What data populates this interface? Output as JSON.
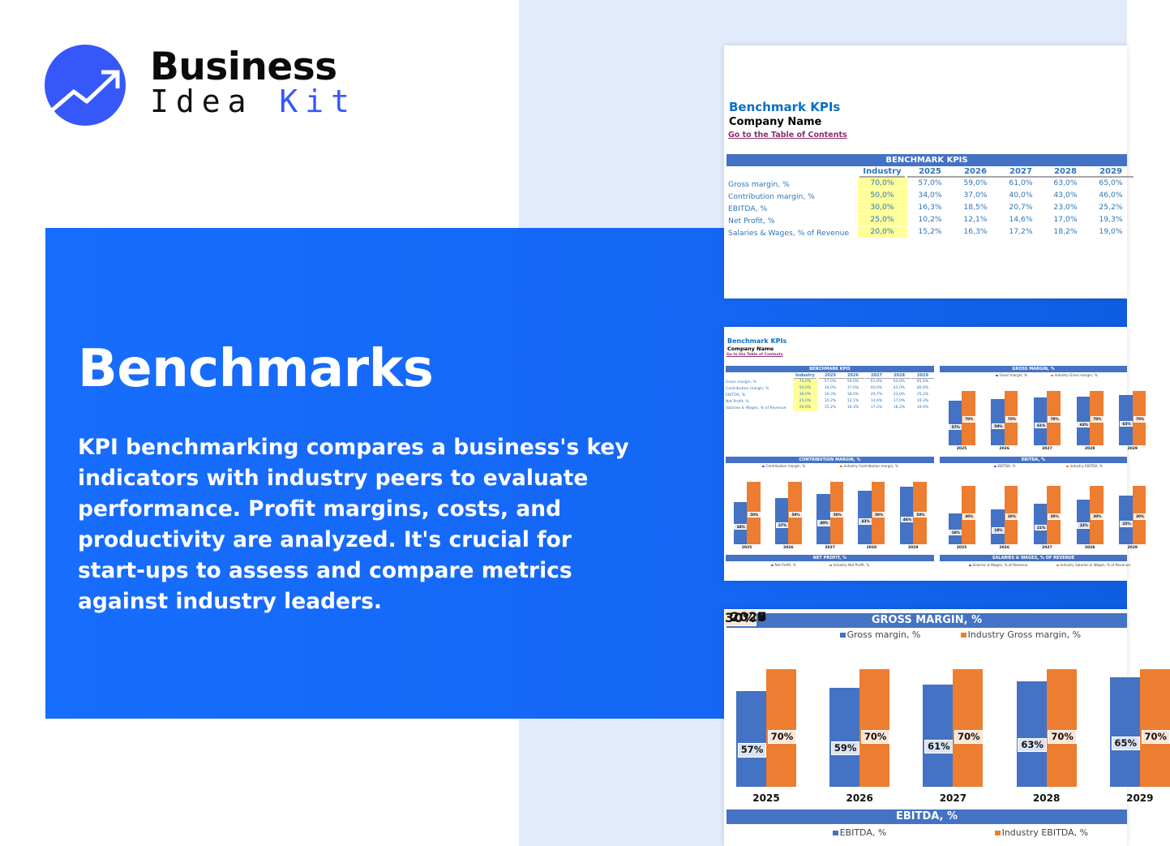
{
  "brand": {
    "name_top": "Business",
    "name_bottom_a": "Idea",
    "name_bottom_b": "Kit",
    "logo_icon": "trend-up-arrow-icon",
    "color": "#3658fb"
  },
  "hero": {
    "title": "Benchmarks",
    "paragraph_lines": [
      "KPI benchmarking compares a business's key",
      "indicators with industry peers to evaluate",
      "performance. Profit margins, costs, and",
      "productivity are analyzed. It's crucial for",
      "start-ups to assess and compare metrics",
      "against industry leaders."
    ]
  },
  "sheet": {
    "title": "Benchmark KPIs",
    "company": "Company Name",
    "toc_link": "Go to the Table of Contents",
    "table_header": "BENCHMARK KPIS",
    "columns": [
      "Industry",
      "2025",
      "2026",
      "2027",
      "2028",
      "2029"
    ],
    "rows": [
      {
        "label": "Gross margin, %",
        "values": [
          "70,0%",
          "57,0%",
          "59,0%",
          "61,0%",
          "63,0%",
          "65,0%"
        ]
      },
      {
        "label": "Contribution margin, %",
        "values": [
          "50,0%",
          "34,0%",
          "37,0%",
          "40,0%",
          "43,0%",
          "46,0%"
        ]
      },
      {
        "label": "EBITDA, %",
        "values": [
          "30,0%",
          "16,3%",
          "18,5%",
          "20,7%",
          "23,0%",
          "25,2%"
        ]
      },
      {
        "label": "Net Profit, %",
        "values": [
          "25,0%",
          "10,2%",
          "12,1%",
          "14,6%",
          "17,0%",
          "19,3%"
        ]
      },
      {
        "label": "Salaries & Wages, % of Revenue",
        "values": [
          "20,0%",
          "15,2%",
          "16,3%",
          "17,2%",
          "18,2%",
          "19,0%"
        ]
      }
    ],
    "colors": {
      "header": "#4472c4",
      "company": "#4472c4",
      "industry": "#ed7d31",
      "highlight": "#ffff99"
    }
  },
  "chart_data": [
    {
      "type": "bar",
      "title": "GROSS MARGIN, %",
      "categories": [
        "2025",
        "2026",
        "2027",
        "2028",
        "2029"
      ],
      "series": [
        {
          "name": "Gross margin, %",
          "values": [
            57,
            59,
            61,
            63,
            65
          ],
          "labels": [
            "57%",
            "59%",
            "61%",
            "63%",
            "65%"
          ]
        },
        {
          "name": "Industry Gross margin, %",
          "values": [
            70,
            70,
            70,
            70,
            70
          ],
          "labels": [
            "70%",
            "70%",
            "70%",
            "70%",
            "70%"
          ]
        }
      ],
      "legend": "top",
      "grid": false
    },
    {
      "type": "bar",
      "title": "CONTRIBUTION MARGIN, %",
      "categories": [
        "2025",
        "2026",
        "2027",
        "2028",
        "2029"
      ],
      "series": [
        {
          "name": "Contribution margin, %",
          "values": [
            34,
            37,
            40,
            43,
            46
          ],
          "labels": [
            "34%",
            "37%",
            "40%",
            "43%",
            "46%"
          ]
        },
        {
          "name": "Industry Contribution margin, %",
          "values": [
            50,
            50,
            50,
            50,
            50
          ],
          "labels": [
            "50%",
            "50%",
            "50%",
            "50%",
            "50%"
          ]
        }
      ],
      "legend": "top",
      "grid": false
    },
    {
      "type": "bar",
      "title": "EBITDA, %",
      "categories": [
        "2025",
        "2026",
        "2027",
        "2028",
        "2029"
      ],
      "series": [
        {
          "name": "EBITDA, %",
          "values": [
            16,
            18,
            21,
            23,
            25
          ],
          "labels": [
            "16%",
            "18%",
            "21%",
            "23%",
            "25%"
          ]
        },
        {
          "name": "Industry EBITDA, %",
          "values": [
            30,
            30,
            30,
            30,
            30
          ],
          "labels": [
            "30%",
            "30%",
            "30%",
            "30%",
            "30%"
          ]
        }
      ],
      "legend": "top",
      "grid": false
    },
    {
      "type": "bar",
      "title": "NET PROFIT, %",
      "series": [
        {
          "name": "Net Profit, %"
        },
        {
          "name": "Industry Net Profit, %"
        }
      ],
      "legend": "top"
    },
    {
      "type": "bar",
      "title": "SALARIES & WAGES, % OF REVENUE",
      "series": [
        {
          "name": "Salaries & Wages, % of Revenue"
        },
        {
          "name": "Industry Salaries & Wages, % of Revenue"
        }
      ],
      "legend": "top"
    }
  ]
}
